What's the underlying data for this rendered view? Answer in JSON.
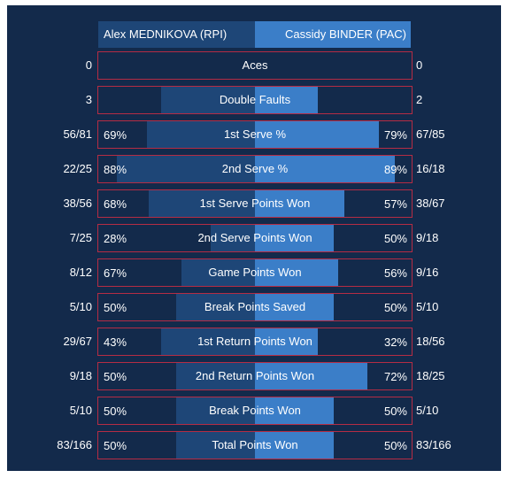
{
  "players": {
    "left": "Alex MEDNIKOVA (RPI)",
    "right": "Cassidy BINDER (PAC)"
  },
  "stats": [
    {
      "label": "Aces",
      "left_val": "0",
      "right_val": "0",
      "left_pct": "",
      "right_pct": "",
      "left_fill": 0,
      "right_fill": 0
    },
    {
      "label": "Double Faults",
      "left_val": "3",
      "right_val": "2",
      "left_pct": "",
      "right_pct": "",
      "left_fill": 0.6,
      "right_fill": 0.4
    },
    {
      "label": "1st Serve %",
      "left_val": "56/81",
      "right_val": "67/85",
      "left_pct": "69%",
      "right_pct": "79%",
      "left_fill": 0.69,
      "right_fill": 0.79
    },
    {
      "label": "2nd Serve %",
      "left_val": "22/25",
      "right_val": "16/18",
      "left_pct": "88%",
      "right_pct": "89%",
      "left_fill": 0.88,
      "right_fill": 0.89
    },
    {
      "label": "1st Serve Points Won",
      "left_val": "38/56",
      "right_val": "38/67",
      "left_pct": "68%",
      "right_pct": "57%",
      "left_fill": 0.68,
      "right_fill": 0.57
    },
    {
      "label": "2nd Serve Points Won",
      "left_val": "7/25",
      "right_val": "9/18",
      "left_pct": "28%",
      "right_pct": "50%",
      "left_fill": 0.28,
      "right_fill": 0.5
    },
    {
      "label": "Game Points Won",
      "left_val": "8/12",
      "right_val": "9/16",
      "left_pct": "67%",
      "right_pct": "56%",
      "left_fill": 0.47,
      "right_fill": 0.53
    },
    {
      "label": "Break Points Saved",
      "left_val": "5/10",
      "right_val": "5/10",
      "left_pct": "50%",
      "right_pct": "50%",
      "left_fill": 0.5,
      "right_fill": 0.5
    },
    {
      "label": "1st Return Points Won",
      "left_val": "29/67",
      "right_val": "18/56",
      "left_pct": "43%",
      "right_pct": "32%",
      "left_fill": 0.6,
      "right_fill": 0.4
    },
    {
      "label": "2nd Return Points Won",
      "left_val": "9/18",
      "right_val": "18/25",
      "left_pct": "50%",
      "right_pct": "72%",
      "left_fill": 0.5,
      "right_fill": 0.72
    },
    {
      "label": "Break Points Won",
      "left_val": "5/10",
      "right_val": "5/10",
      "left_pct": "50%",
      "right_pct": "50%",
      "left_fill": 0.5,
      "right_fill": 0.5
    },
    {
      "label": "Total Points Won",
      "left_val": "83/166",
      "right_val": "83/166",
      "left_pct": "50%",
      "right_pct": "50%",
      "left_fill": 0.5,
      "right_fill": 0.5
    }
  ],
  "colors": {
    "background": "#132a4b",
    "left_bar": "#1e4677",
    "right_bar": "#3b7ec8",
    "row_border": "#b52c44",
    "text": "#ffffff"
  }
}
